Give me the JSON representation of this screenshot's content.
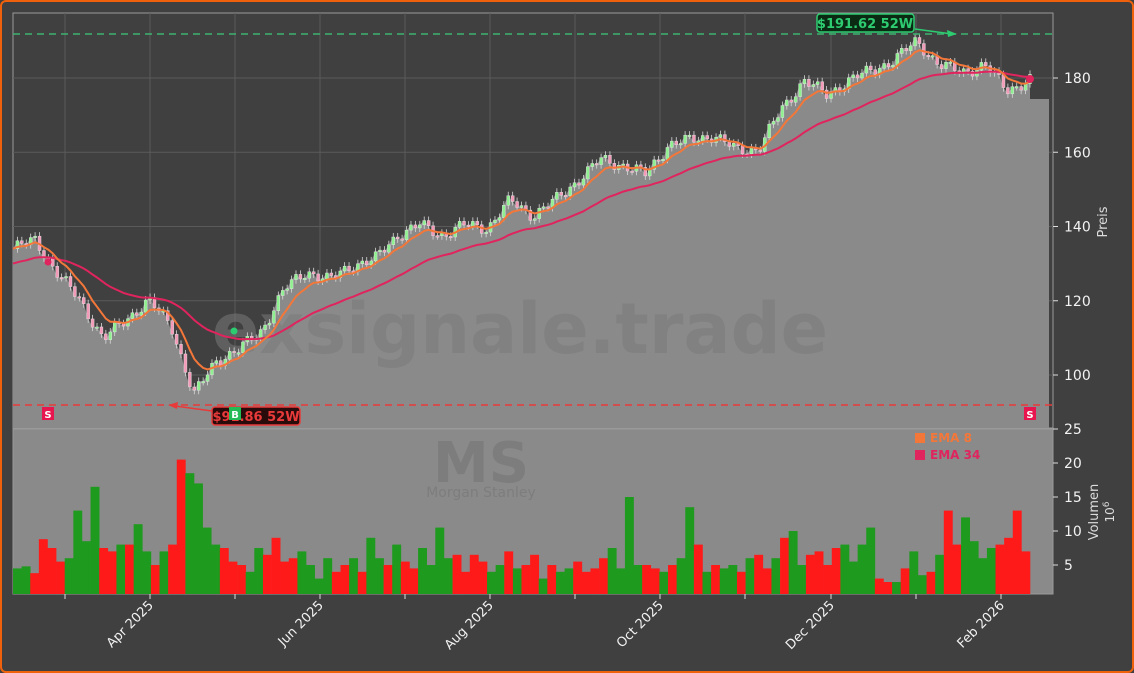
{
  "chart_data": [
    {
      "type": "line",
      "title": "",
      "ticker": "MS",
      "company": "Morgan Stanley",
      "watermark": "exsignale.trade",
      "ylabel": "Preis",
      "ylim": [
        91,
        194
      ],
      "yticks": [
        100,
        120,
        140,
        160,
        180
      ],
      "x_tick_labels": [
        "Apr 2025",
        "Jun 2025",
        "Aug 2025",
        "Oct 2025",
        "Dec 2025",
        "Feb 2026"
      ],
      "x": [
        "2025-02-10",
        "2025-02-17",
        "2025-02-24",
        "2025-03-03",
        "2025-03-10",
        "2025-03-17",
        "2025-03-24",
        "2025-03-31",
        "2025-04-07",
        "2025-04-10",
        "2025-04-17",
        "2025-04-24",
        "2025-05-05",
        "2025-05-12",
        "2025-05-19",
        "2025-05-26",
        "2025-06-09",
        "2025-06-23",
        "2025-06-30",
        "2025-07-07",
        "2025-07-14",
        "2025-07-28",
        "2025-08-04",
        "2025-08-11",
        "2025-08-18",
        "2025-08-25",
        "2025-09-01",
        "2025-09-15",
        "2025-09-22",
        "2025-10-06",
        "2025-10-13",
        "2025-10-27",
        "2025-11-03",
        "2025-11-17",
        "2025-11-24",
        "2025-12-01",
        "2025-12-08",
        "2025-12-15",
        "2025-12-22",
        "2025-12-29",
        "2026-01-05",
        "2026-01-12",
        "2026-01-19",
        "2026-01-26",
        "2026-02-02",
        "2026-02-09"
      ],
      "series": [
        {
          "name": "Close",
          "values": [
            134,
            136.5,
            127,
            120,
            109.5,
            115,
            120,
            113.5,
            94.5,
            104,
            106.7,
            112,
            123,
            128,
            125.5,
            129.6,
            131,
            137.7,
            140.4,
            137.7,
            140.4,
            139.6,
            147,
            143,
            147,
            152.5,
            158,
            156.5,
            154,
            162,
            163.3,
            164.6,
            160.6,
            161,
            171.4,
            179.5,
            175.4,
            179.5,
            182,
            184.9,
            190,
            183.5,
            181.6,
            183.5,
            176.8,
            179.5
          ]
        },
        {
          "name": "EMA 8",
          "color": "#f4773a"
        },
        {
          "name": "EMA 34",
          "color": "#e0245e"
        }
      ],
      "annotations": [
        {
          "label": "$191.62 52W",
          "type": "52w-high",
          "value": 191.62,
          "color": "#2ecc71"
        },
        {
          "label": "$91.86 52W",
          "type": "52w-low",
          "value": 91.86,
          "color": "#e83a3a"
        },
        {
          "label": "S",
          "type": "sell-signal"
        },
        {
          "label": "B",
          "type": "buy-signal"
        },
        {
          "label": "S",
          "type": "sell-signal"
        }
      ],
      "legend": [
        {
          "label": "EMA 8",
          "color": "#f4773a"
        },
        {
          "label": "EMA 34",
          "color": "#e0245e"
        }
      ]
    },
    {
      "type": "bar",
      "ylabel": "Volumen",
      "yunit": "10^6",
      "ylim": [
        0,
        25
      ],
      "yticks": [
        5,
        10,
        15,
        20,
        25
      ],
      "values": [
        4.5,
        4.8,
        3.8,
        8.8,
        7.5,
        5.5,
        6,
        13,
        8.5,
        16.5,
        7.5,
        7,
        8,
        8,
        11,
        7,
        5,
        7,
        8,
        20.5,
        18.5,
        17,
        10.5,
        8,
        7.5,
        5.5,
        5,
        4,
        7.5,
        6.5,
        9,
        5.5,
        6,
        7,
        5,
        3,
        6,
        4,
        5,
        6,
        4,
        9,
        6,
        5,
        8,
        5.5,
        4.5,
        7.5,
        5,
        10.5,
        6,
        6.5,
        4,
        6.5,
        5.5,
        4,
        5,
        7,
        4.5,
        5,
        6.5,
        3,
        5,
        4,
        4.5,
        5.5,
        4,
        4.5,
        6,
        7.5,
        4.5,
        15,
        5,
        5,
        4.5,
        4,
        5,
        6,
        13.5,
        8,
        4,
        5,
        4.5,
        5,
        4,
        6,
        6.5,
        4.5,
        6,
        9,
        10,
        5,
        6.5,
        7,
        5,
        7.5,
        8,
        5.5,
        8,
        10.5,
        3,
        2.5,
        2.5,
        4.5,
        7,
        3.5,
        4,
        6.5,
        13,
        8,
        12,
        8.5,
        6,
        7.5,
        8,
        9,
        13,
        7
      ],
      "colors_rule": "green = up day, red = down day"
    }
  ],
  "axes": {
    "price_label": "Preis",
    "volume_label": "Volumen",
    "volume_unit": "10",
    "volume_unit_exp": "6",
    "price_ticks": [
      "180",
      "160",
      "140",
      "120",
      "100"
    ],
    "volume_ticks": [
      "25",
      "20",
      "15",
      "10",
      "5"
    ],
    "x_ticks": [
      "Apr 2025",
      "Jun 2025",
      "Aug 2025",
      "Oct 2025",
      "Dec 2025",
      "Feb 2026"
    ]
  },
  "labels": {
    "high": "$191.62 52W",
    "low": "$91.86 52W",
    "sell1": "S",
    "buy": "B",
    "sell2": "S",
    "watermark": "exsignale.trade",
    "ticker": "MS",
    "company": "Morgan Stanley",
    "legend_ema8": "EMA 8",
    "legend_ema34": "EMA 34"
  },
  "colors": {
    "frame": "#f0610c",
    "bg": "#404040",
    "area": "#8a8a8a",
    "ema8": "#f4773a",
    "ema34": "#e0245e",
    "up": "#1e9a1e",
    "down": "#ff1a1a",
    "high": "#2ecc71",
    "low": "#e83a3a"
  }
}
